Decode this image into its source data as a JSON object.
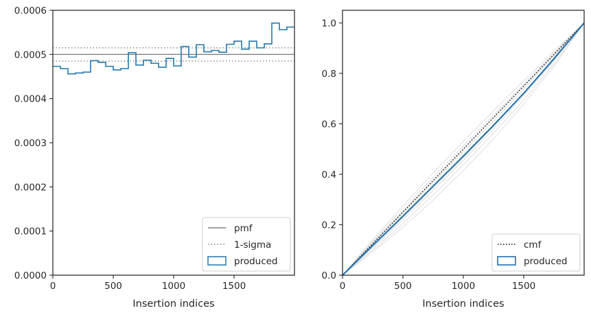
{
  "chart_data": [
    {
      "type": "step",
      "xlabel": "Insertion indices",
      "ylabel": "",
      "xlim": [
        0,
        2000
      ],
      "ylim": [
        0,
        0.0006
      ],
      "xticks": [
        0,
        500,
        1000,
        1500
      ],
      "xtick_labels": [
        "0",
        "500",
        "1000",
        "1500"
      ],
      "yticks": [
        0,
        0.0001,
        0.0002,
        0.0003,
        0.0004,
        0.0005,
        0.0006
      ],
      "ytick_labels": [
        "0.0000",
        "0.0001",
        "0.0002",
        "0.0003",
        "0.0004",
        "0.0005",
        "0.0006"
      ],
      "legend_position": "lower-right",
      "pmf": 0.0005,
      "sigma_band": [
        0.000485,
        0.000515
      ],
      "series": [
        {
          "name": "pmf",
          "style": "solid-line",
          "color": "#808080"
        },
        {
          "name": "1-sigma",
          "style": "dotted-line",
          "color": "#808080"
        },
        {
          "name": "produced",
          "style": "step",
          "color": "#2f7fb0",
          "bin_edges": [
            0,
            62.5,
            125,
            187.5,
            250,
            312.5,
            375,
            437.5,
            500,
            562.5,
            625,
            687.5,
            750,
            812.5,
            875,
            937.5,
            1000,
            1062.5,
            1125,
            1187.5,
            1250,
            1312.5,
            1375,
            1437.5,
            1500,
            1562.5,
            1625,
            1687.5,
            1750,
            1812.5,
            1875,
            1937.5,
            2000
          ],
          "values": [
            0.000473,
            0.000468,
            0.000456,
            0.000458,
            0.00046,
            0.000486,
            0.000482,
            0.000473,
            0.000465,
            0.000468,
            0.000504,
            0.000476,
            0.000487,
            0.00048,
            0.000471,
            0.000491,
            0.000474,
            0.000518,
            0.000494,
            0.000522,
            0.000506,
            0.000509,
            0.000505,
            0.000523,
            0.00053,
            0.000512,
            0.00053,
            0.000515,
            0.000524,
            0.000571,
            0.000556,
            0.000562
          ]
        }
      ]
    },
    {
      "type": "line",
      "xlabel": "Insertion indices",
      "ylabel": "",
      "xlim": [
        0,
        2000
      ],
      "ylim": [
        0,
        1.05
      ],
      "xticks": [
        0,
        500,
        1000,
        1500
      ],
      "xtick_labels": [
        "0",
        "500",
        "1000",
        "1500"
      ],
      "yticks": [
        0,
        0.2,
        0.4,
        0.6,
        0.8,
        1.0
      ],
      "ytick_labels": [
        "0.0",
        "0.2",
        "0.4",
        "0.6",
        "0.8",
        "1.0"
      ],
      "legend_position": "lower-right",
      "series": [
        {
          "name": "cmf",
          "style": "dotted-line",
          "color": "#000000",
          "x": [
            0,
            2000
          ],
          "y": [
            0,
            1
          ]
        },
        {
          "name": "produced",
          "style": "solid-line",
          "color": "#1f6fb0",
          "x": [
            0,
            250,
            500,
            750,
            1000,
            1250,
            1500,
            1750,
            2000
          ],
          "y": [
            0,
            0.118,
            0.234,
            0.353,
            0.472,
            0.594,
            0.721,
            0.858,
            1.0
          ]
        }
      ],
      "background_curves": [
        {
          "x": [
            0,
            250,
            500,
            750,
            1000,
            1250,
            1500,
            1750,
            2000
          ],
          "y": [
            0,
            0.1,
            0.205,
            0.318,
            0.438,
            0.562,
            0.695,
            0.838,
            1.0
          ]
        },
        {
          "x": [
            0,
            250,
            500,
            750,
            1000,
            1250,
            1500,
            1750,
            2000
          ],
          "y": [
            0,
            0.108,
            0.22,
            0.335,
            0.455,
            0.58,
            0.712,
            0.85,
            1.0
          ]
        },
        {
          "x": [
            0,
            250,
            500,
            750,
            1000,
            1250,
            1500,
            1750,
            2000
          ],
          "y": [
            0,
            0.125,
            0.247,
            0.368,
            0.49,
            0.612,
            0.738,
            0.868,
            1.0
          ]
        },
        {
          "x": [
            0,
            250,
            500,
            750,
            1000,
            1250,
            1500,
            1750,
            2000
          ],
          "y": [
            0,
            0.133,
            0.262,
            0.388,
            0.512,
            0.635,
            0.757,
            0.88,
            1.0
          ]
        },
        {
          "x": [
            0,
            250,
            500,
            750,
            1000,
            1250,
            1500,
            1750,
            2000
          ],
          "y": [
            0,
            0.14,
            0.275,
            0.405,
            0.53,
            0.652,
            0.77,
            0.888,
            1.0
          ]
        },
        {
          "x": [
            0,
            250,
            500,
            750,
            1000,
            1250,
            1500,
            1750,
            2000
          ],
          "y": [
            0,
            0.112,
            0.228,
            0.346,
            0.466,
            0.59,
            0.718,
            0.853,
            1.0
          ]
        },
        {
          "x": [
            0,
            250,
            500,
            750,
            1000,
            1250,
            1500,
            1750,
            2000
          ],
          "y": [
            0,
            0.092,
            0.19,
            0.298,
            0.415,
            0.54,
            0.678,
            0.828,
            1.0
          ]
        },
        {
          "x": [
            0,
            250,
            500,
            750,
            1000,
            1250,
            1500,
            1750,
            2000
          ],
          "y": [
            0,
            0.128,
            0.252,
            0.376,
            0.5,
            0.624,
            0.748,
            0.874,
            1.0
          ]
        }
      ]
    }
  ]
}
